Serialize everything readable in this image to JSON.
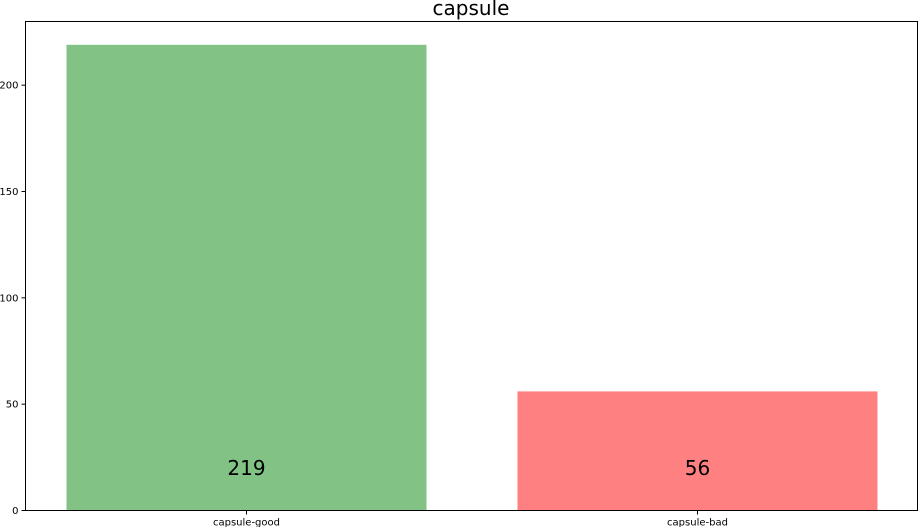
{
  "chart_data": {
    "type": "bar",
    "title": "capsule",
    "xlabel": "",
    "ylabel": "",
    "categories": [
      "capsule-good",
      "capsule-bad"
    ],
    "values": [
      219,
      56
    ],
    "colors": [
      "#82c284",
      "#ff8080"
    ],
    "data_labels": [
      "219",
      "56"
    ],
    "yticks": [
      "0",
      "50",
      "100",
      "150",
      "200"
    ],
    "ylim": [
      0,
      229.95
    ],
    "grid": false
  }
}
